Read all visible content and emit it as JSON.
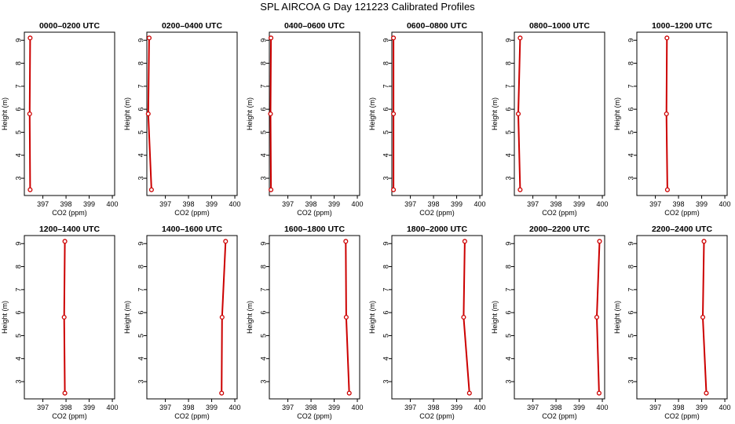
{
  "figure": {
    "title": "SPL AIRCOA G  Day 121223  Calibrated Profiles"
  },
  "colors": {
    "line": "#cc0000",
    "axis": "#000000"
  },
  "chart_data": [
    {
      "type": "line",
      "title": "0000–0200 UTC",
      "xlabel": "CO2 (ppm)",
      "ylabel": "Height (m)",
      "xlim": [
        396.2,
        400.1
      ],
      "ylim": [
        2.25,
        9.35
      ],
      "xticks": [
        397,
        398,
        399,
        400
      ],
      "yticks": [
        3,
        4,
        5,
        6,
        7,
        8,
        9
      ],
      "grid": false,
      "x": [
        396.45,
        396.43,
        396.45
      ],
      "y": [
        9.1,
        5.8,
        2.5
      ]
    },
    {
      "type": "line",
      "title": "0200–0400 UTC",
      "xlabel": "CO2 (ppm)",
      "ylabel": "Height (m)",
      "xlim": [
        396.2,
        400.1
      ],
      "ylim": [
        2.25,
        9.35
      ],
      "xticks": [
        397,
        398,
        399,
        400
      ],
      "yticks": [
        3,
        4,
        5,
        6,
        7,
        8,
        9
      ],
      "grid": false,
      "x": [
        396.3,
        396.26,
        396.4
      ],
      "y": [
        9.1,
        5.8,
        2.5
      ]
    },
    {
      "type": "line",
      "title": "0400–0600 UTC",
      "xlabel": "CO2 (ppm)",
      "ylabel": "Height (m)",
      "xlim": [
        396.2,
        400.1
      ],
      "ylim": [
        2.25,
        9.35
      ],
      "xticks": [
        397,
        398,
        399,
        400
      ],
      "yticks": [
        3,
        4,
        5,
        6,
        7,
        8,
        9
      ],
      "grid": false,
      "x": [
        396.27,
        396.25,
        396.27
      ],
      "y": [
        9.1,
        5.8,
        2.5
      ]
    },
    {
      "type": "line",
      "title": "0600–0800 UTC",
      "xlabel": "CO2 (ppm)",
      "ylabel": "Height (m)",
      "xlim": [
        396.2,
        400.1
      ],
      "ylim": [
        2.25,
        9.35
      ],
      "xticks": [
        397,
        398,
        399,
        400
      ],
      "yticks": [
        3,
        4,
        5,
        6,
        7,
        8,
        9
      ],
      "grid": false,
      "x": [
        396.27,
        396.27,
        396.27
      ],
      "y": [
        9.1,
        5.8,
        2.5
      ]
    },
    {
      "type": "line",
      "title": "0800–1000 UTC",
      "xlabel": "CO2 (ppm)",
      "ylabel": "Height (m)",
      "xlim": [
        396.2,
        400.1
      ],
      "ylim": [
        2.25,
        9.35
      ],
      "xticks": [
        397,
        398,
        399,
        400
      ],
      "yticks": [
        3,
        4,
        5,
        6,
        7,
        8,
        9
      ],
      "grid": false,
      "x": [
        396.45,
        396.37,
        396.45
      ],
      "y": [
        9.1,
        5.8,
        2.5
      ]
    },
    {
      "type": "line",
      "title": "1000–1200 UTC",
      "xlabel": "CO2 (ppm)",
      "ylabel": "Height (m)",
      "xlim": [
        396.2,
        400.1
      ],
      "ylim": [
        2.25,
        9.35
      ],
      "xticks": [
        397,
        398,
        399,
        400
      ],
      "yticks": [
        3,
        4,
        5,
        6,
        7,
        8,
        9
      ],
      "grid": false,
      "x": [
        397.5,
        397.48,
        397.52
      ],
      "y": [
        9.1,
        5.8,
        2.5
      ]
    },
    {
      "type": "line",
      "title": "1200–1400 UTC",
      "xlabel": "CO2 (ppm)",
      "ylabel": "Height (m)",
      "xlim": [
        396.2,
        400.1
      ],
      "ylim": [
        2.25,
        9.35
      ],
      "xticks": [
        397,
        398,
        399,
        400
      ],
      "yticks": [
        3,
        4,
        5,
        6,
        7,
        8,
        9
      ],
      "grid": false,
      "x": [
        397.95,
        397.92,
        397.95
      ],
      "y": [
        9.1,
        5.8,
        2.5
      ]
    },
    {
      "type": "line",
      "title": "1400–1600 UTC",
      "xlabel": "CO2 (ppm)",
      "ylabel": "Height (m)",
      "xlim": [
        396.2,
        400.1
      ],
      "ylim": [
        2.25,
        9.35
      ],
      "xticks": [
        397,
        398,
        399,
        400
      ],
      "yticks": [
        3,
        4,
        5,
        6,
        7,
        8,
        9
      ],
      "grid": false,
      "x": [
        399.6,
        399.45,
        399.43
      ],
      "y": [
        9.1,
        5.8,
        2.5
      ]
    },
    {
      "type": "line",
      "title": "1600–1800 UTC",
      "xlabel": "CO2 (ppm)",
      "ylabel": "Height (m)",
      "xlim": [
        396.2,
        400.1
      ],
      "ylim": [
        2.25,
        9.35
      ],
      "xticks": [
        397,
        398,
        399,
        400
      ],
      "yticks": [
        3,
        4,
        5,
        6,
        7,
        8,
        9
      ],
      "grid": false,
      "x": [
        399.5,
        399.52,
        399.65
      ],
      "y": [
        9.1,
        5.8,
        2.5
      ]
    },
    {
      "type": "line",
      "title": "1800–2000 UTC",
      "xlabel": "CO2 (ppm)",
      "ylabel": "Height (m)",
      "xlim": [
        396.2,
        400.1
      ],
      "ylim": [
        2.25,
        9.35
      ],
      "xticks": [
        397,
        398,
        399,
        400
      ],
      "yticks": [
        3,
        4,
        5,
        6,
        7,
        8,
        9
      ],
      "grid": false,
      "x": [
        399.35,
        399.3,
        399.55
      ],
      "y": [
        9.1,
        5.8,
        2.5
      ]
    },
    {
      "type": "line",
      "title": "2000–2200 UTC",
      "xlabel": "CO2 (ppm)",
      "ylabel": "Height (m)",
      "xlim": [
        396.2,
        400.1
      ],
      "ylim": [
        2.25,
        9.35
      ],
      "xticks": [
        397,
        398,
        399,
        400
      ],
      "yticks": [
        3,
        4,
        5,
        6,
        7,
        8,
        9
      ],
      "grid": false,
      "x": [
        399.88,
        399.76,
        399.86
      ],
      "y": [
        9.1,
        5.8,
        2.5
      ]
    },
    {
      "type": "line",
      "title": "2200–2400 UTC",
      "xlabel": "CO2 (ppm)",
      "ylabel": "Height (m)",
      "xlim": [
        396.2,
        400.1
      ],
      "ylim": [
        2.25,
        9.35
      ],
      "xticks": [
        397,
        398,
        399,
        400
      ],
      "yticks": [
        3,
        4,
        5,
        6,
        7,
        8,
        9
      ],
      "grid": false,
      "x": [
        399.1,
        399.05,
        399.2
      ],
      "y": [
        9.1,
        5.8,
        2.5
      ]
    }
  ]
}
